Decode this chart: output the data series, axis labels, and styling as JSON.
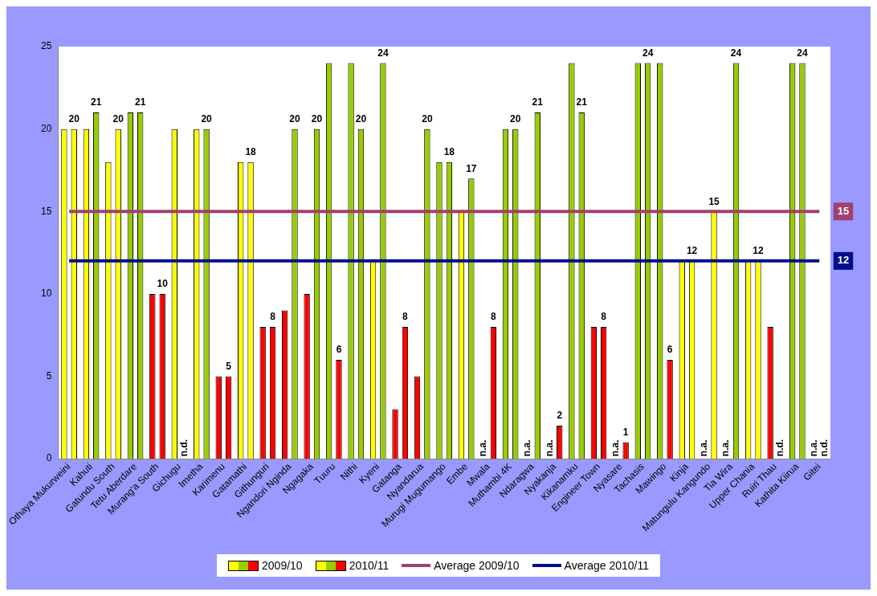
{
  "chart_data": {
    "type": "bar",
    "categories": [
      "Othaya Mukurweini",
      "Kahuti",
      "Gatundu South",
      "Tetu Aberdare",
      "Murang'a South",
      "Gichugu",
      "Imetha",
      "Karimenu",
      "Gatamathi",
      "Githunguri",
      "Ngandori Nginda",
      "Ngagaka",
      "Tuuru",
      "Nithi",
      "Kyeni",
      "Gatanga",
      "Nyandarua",
      "Murugi Mugumango",
      "Embe",
      "Mwala",
      "Muthambi 4K",
      "Ndaragwa",
      "Nyakanja",
      "Kikanamku",
      "Engineer Town",
      "Nyasare",
      "Tachasis",
      "Mawingo",
      "Kinja",
      "Matungulu Kangundo",
      "Tia Wira",
      "Upper Chania",
      "Ruiri Thau",
      "Kathita Kiirua",
      "Gitei"
    ],
    "series": [
      {
        "name": "2009/10",
        "values": [
          20,
          20,
          18,
          21,
          10,
          20,
          20,
          5,
          18,
          8,
          9,
          10,
          24,
          24,
          12,
          3,
          5,
          18,
          15,
          null,
          20,
          null,
          null,
          24,
          8,
          null,
          24,
          24,
          12,
          null,
          null,
          12,
          8,
          24,
          null
        ],
        "colors": [
          "#ffff00",
          "#ffff00",
          "#ffff00",
          "#99cc00",
          "#ff0000",
          "#ffff00",
          "#ffff00",
          "#ff0000",
          "#ffff00",
          "#ff0000",
          "#ff0000",
          "#ff0000",
          "#99cc00",
          "#99cc00",
          "#ffff00",
          "#ff0000",
          "#ff0000",
          "#99cc00",
          "#ffff00",
          "#ff0000",
          "#99cc00",
          "#99cc00",
          "#ff0000",
          "#99cc00",
          "#ff0000",
          "#ff0000",
          "#99cc00",
          "#99cc00",
          "#ffff00",
          "#ffff00",
          "#99cc00",
          "#ffff00",
          "#ff0000",
          "#99cc00",
          "#ffff00"
        ],
        "value_labels": [
          null,
          null,
          null,
          null,
          null,
          null,
          null,
          null,
          null,
          null,
          null,
          null,
          null,
          null,
          null,
          null,
          null,
          null,
          null,
          "n.a.",
          null,
          "n.a.",
          "n.a.",
          null,
          null,
          "n.a.",
          null,
          null,
          null,
          "n.a.",
          "n.a.",
          null,
          null,
          null,
          "n.a."
        ]
      },
      {
        "name": "2010/11",
        "values": [
          20,
          21,
          20,
          21,
          10,
          null,
          20,
          5,
          18,
          8,
          20,
          20,
          6,
          20,
          24,
          8,
          20,
          18,
          17,
          8,
          20,
          21,
          2,
          21,
          8,
          1,
          24,
          6,
          12,
          15,
          24,
          12,
          null,
          24,
          null
        ],
        "colors": [
          "#ffff00",
          "#99cc00",
          "#ffff00",
          "#99cc00",
          "#ff0000",
          "#ffff00",
          "#99cc00",
          "#ff0000",
          "#ffff00",
          "#ff0000",
          "#99cc00",
          "#99cc00",
          "#ff0000",
          "#99cc00",
          "#99cc00",
          "#ff0000",
          "#99cc00",
          "#99cc00",
          "#99cc00",
          "#ff0000",
          "#99cc00",
          "#99cc00",
          "#ff0000",
          "#99cc00",
          "#ff0000",
          "#ff0000",
          "#99cc00",
          "#ff0000",
          "#ffff00",
          "#ffff00",
          "#99cc00",
          "#ffff00",
          "#ff0000",
          "#99cc00",
          "#ffff00"
        ],
        "value_labels": [
          "20",
          "21",
          "20",
          "21",
          "10",
          "n.d.",
          "20",
          "5",
          "18",
          "8",
          "20",
          "20",
          "6",
          "20",
          "24",
          "8",
          "20",
          "18",
          "17",
          "8",
          "20",
          "21",
          "2",
          "21",
          "8",
          "1",
          "24",
          "6",
          "12",
          "15",
          "24",
          "12",
          "n.d.",
          "24",
          "n.d."
        ]
      },
      {
        "type": "line",
        "name": "Average 2009/10",
        "color": "#a0406e",
        "values": [
          15,
          15,
          15,
          15,
          15,
          15,
          15,
          15,
          15,
          15,
          15,
          15,
          15,
          15,
          15,
          15,
          15,
          15,
          15,
          15,
          15,
          15,
          15,
          15,
          15,
          15,
          15,
          15,
          15,
          15,
          15,
          15,
          15,
          15,
          15
        ],
        "value_labels": [
          null,
          null,
          null,
          null,
          null,
          null,
          null,
          null,
          null,
          null,
          null,
          null,
          null,
          null,
          null,
          null,
          null,
          null,
          null,
          null,
          null,
          null,
          null,
          null,
          null,
          null,
          null,
          null,
          null,
          null,
          null,
          null,
          null,
          null,
          "15"
        ]
      },
      {
        "type": "line",
        "name": "Average 2010/11",
        "color": "#000f8a",
        "values": [
          12,
          12,
          12,
          12,
          12,
          12,
          12,
          12,
          12,
          12,
          12,
          12,
          12,
          12,
          12,
          12,
          12,
          12,
          12,
          12,
          12,
          12,
          12,
          12,
          12,
          12,
          12,
          12,
          12,
          12,
          12,
          12,
          12,
          12,
          12
        ],
        "value_labels": [
          null,
          null,
          null,
          null,
          null,
          null,
          null,
          null,
          null,
          null,
          null,
          null,
          null,
          null,
          null,
          null,
          null,
          null,
          null,
          null,
          null,
          null,
          null,
          null,
          null,
          null,
          null,
          null,
          null,
          null,
          null,
          null,
          null,
          null,
          "12"
        ]
      }
    ],
    "ylim": [
      0,
      25
    ],
    "yticks": [
      0,
      5,
      10,
      15,
      20,
      25
    ],
    "grid": false,
    "legend": "bottom"
  }
}
